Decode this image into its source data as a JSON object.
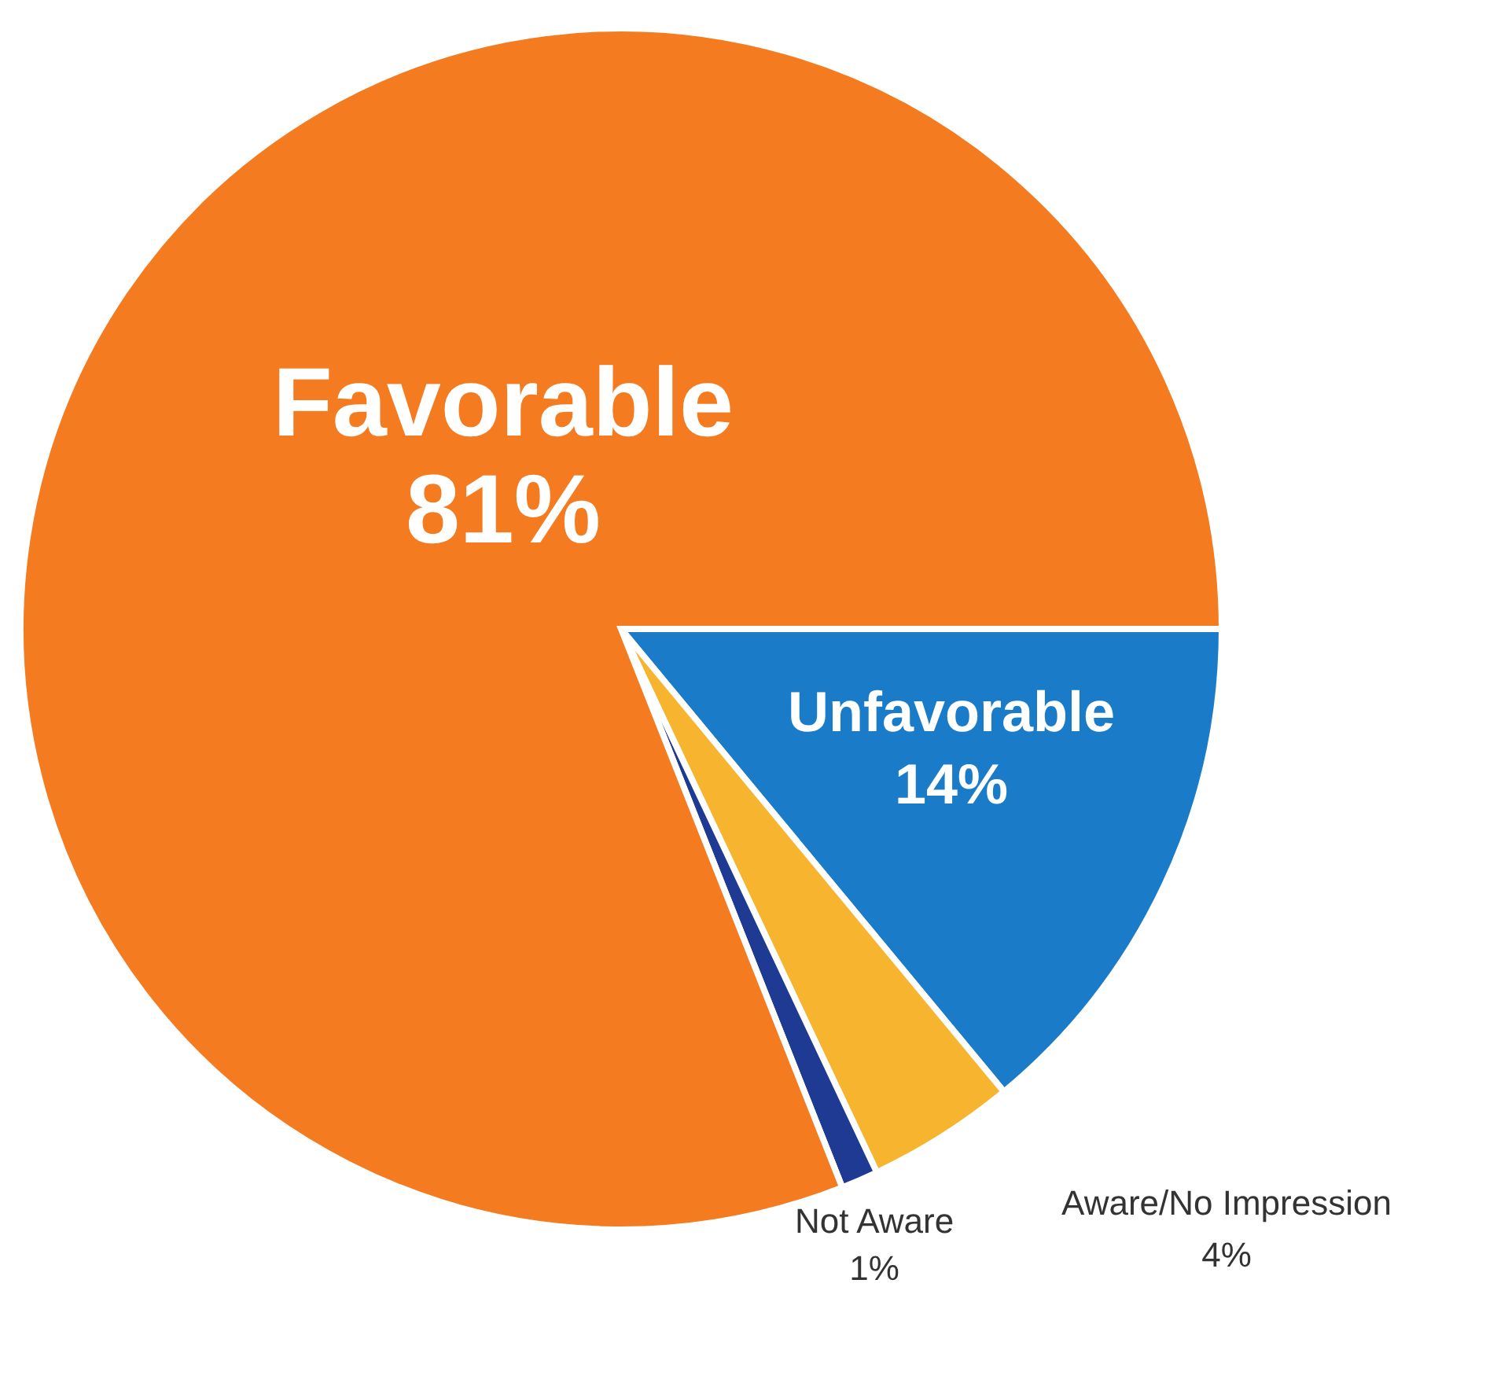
{
  "chart_data": {
    "type": "pie",
    "categories": [
      "Unfavorable",
      "Aware/No Impression",
      "Not Aware",
      "Favorable"
    ],
    "values": [
      14,
      4,
      1,
      81
    ],
    "colors": [
      "#1a7bc9",
      "#f7b52f",
      "#1f3a93",
      "#f47b20"
    ],
    "value_labels": [
      "14%",
      "4%",
      "1%",
      "81%"
    ]
  }
}
